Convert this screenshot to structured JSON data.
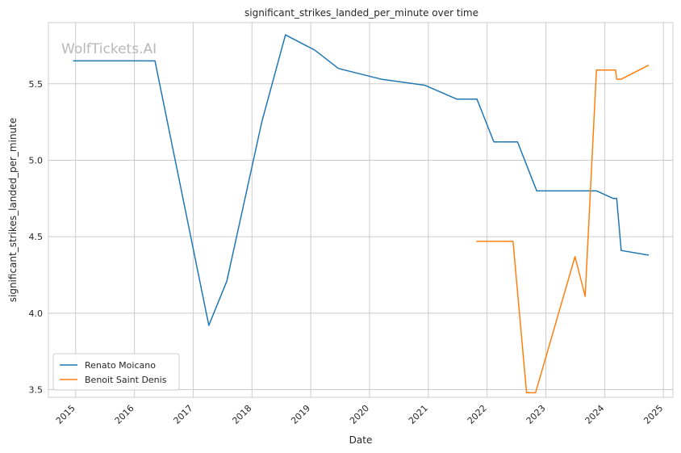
{
  "chart_data": {
    "type": "line",
    "title": "significant_strikes_landed_per_minute over time",
    "xlabel": "Date",
    "ylabel": "significant_strikes_landed_per_minute",
    "watermark": "WolfTickets.AI",
    "x_ticks": [
      "2015",
      "2016",
      "2017",
      "2018",
      "2019",
      "2020",
      "2021",
      "2022",
      "2023",
      "2024",
      "2025"
    ],
    "y_ticks": [
      "3.5",
      "4.0",
      "4.5",
      "5.0",
      "5.5"
    ],
    "xlim": [
      "2014-07-16",
      "2025-03-01"
    ],
    "ylim": [
      3.45,
      5.9
    ],
    "grid": true,
    "legend_position": "lower-left",
    "series": [
      {
        "name": "Renato Moicano",
        "color": "#1f77b4",
        "x": [
          "2014-12-20",
          "2016-05-08",
          "2017-04-08",
          "2017-07-29",
          "2018-03-03",
          "2018-07-28",
          "2019-01-26",
          "2019-06-22",
          "2020-03-14",
          "2020-12-12",
          "2021-06-26",
          "2021-10-30",
          "2022-02-12",
          "2022-07-09",
          "2022-11-05",
          "2023-07-22",
          "2023-11-11",
          "2024-02-24",
          "2024-03-16",
          "2024-04-13",
          "2024-09-28"
        ],
        "values": [
          5.65,
          5.65,
          3.92,
          4.21,
          5.25,
          5.82,
          5.72,
          5.6,
          5.53,
          5.49,
          5.4,
          5.4,
          5.12,
          5.12,
          4.8,
          4.8,
          4.8,
          4.75,
          4.75,
          4.41,
          4.38
        ]
      },
      {
        "name": "Benoit Saint Denis",
        "color": "#ff7f0e",
        "x": [
          "2021-10-30",
          "2022-06-11",
          "2022-09-03",
          "2022-10-29",
          "2023-07-01",
          "2023-09-02",
          "2023-11-11",
          "2024-03-09",
          "2024-03-16",
          "2024-04-13",
          "2024-09-28"
        ],
        "values": [
          4.47,
          4.47,
          3.48,
          3.48,
          4.37,
          4.11,
          5.59,
          5.59,
          5.53,
          5.53,
          5.62
        ]
      }
    ]
  }
}
